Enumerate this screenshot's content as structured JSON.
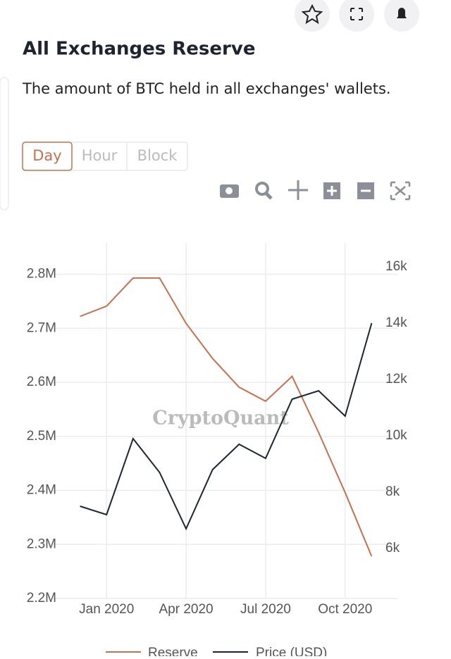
{
  "header": {
    "title": "All Exchanges Reserve",
    "subtitle": "The amount of BTC held in all exchanges' wallets."
  },
  "tabs": [
    "Day",
    "Hour",
    "Block"
  ],
  "chart_data": {
    "type": "line",
    "watermark": "CryptoQuant",
    "x": [
      "2019-12",
      "2020-01",
      "2020-02",
      "2020-03",
      "2020-04",
      "2020-05",
      "2020-06",
      "2020-07",
      "2020-08",
      "2020-09",
      "2020-10",
      "2020-11"
    ],
    "xlim": [
      "2019-11",
      "2020-12"
    ],
    "xticks": [
      {
        "value": "2020-01",
        "label": "Jan 2020"
      },
      {
        "value": "2020-04",
        "label": "Apr 2020"
      },
      {
        "value": "2020-07",
        "label": "Jul 2020"
      },
      {
        "value": "2020-10",
        "label": "Oct 2020"
      }
    ],
    "ylim": [
      2200000,
      2858000
    ],
    "yticks": [
      {
        "value": 2200000,
        "label": "2.2M"
      },
      {
        "value": 2300000,
        "label": "2.3M"
      },
      {
        "value": 2400000,
        "label": "2.4M"
      },
      {
        "value": 2500000,
        "label": "2.5M"
      },
      {
        "value": 2600000,
        "label": "2.6M"
      },
      {
        "value": 2700000,
        "label": "2.7M"
      },
      {
        "value": 2800000,
        "label": "2.8M"
      }
    ],
    "y2lim": [
      4225,
      16850
    ],
    "y2ticks": [
      {
        "value": 6000,
        "label": "6k"
      },
      {
        "value": 8000,
        "label": "8k"
      },
      {
        "value": 10000,
        "label": "10k"
      },
      {
        "value": 12000,
        "label": "12k"
      },
      {
        "value": 14000,
        "label": "14k"
      },
      {
        "value": 16000,
        "label": "16k"
      }
    ],
    "grid": true,
    "legend": "bottom",
    "series": [
      {
        "name": "Reserve",
        "color": "#c5714f",
        "values": [
          2722000,
          2741000,
          2793000,
          2793000,
          2709000,
          2644000,
          2591000,
          2565000,
          2611000,
          2507000,
          2396000,
          2278000
        ]
      },
      {
        "name": "Price (USD)",
        "color": "#1d2531",
        "axis": "y2",
        "values": [
          7500,
          7200,
          9900,
          8700,
          6700,
          8800,
          9700,
          9200,
          11300,
          11600,
          10700,
          14000
        ]
      }
    ]
  }
}
